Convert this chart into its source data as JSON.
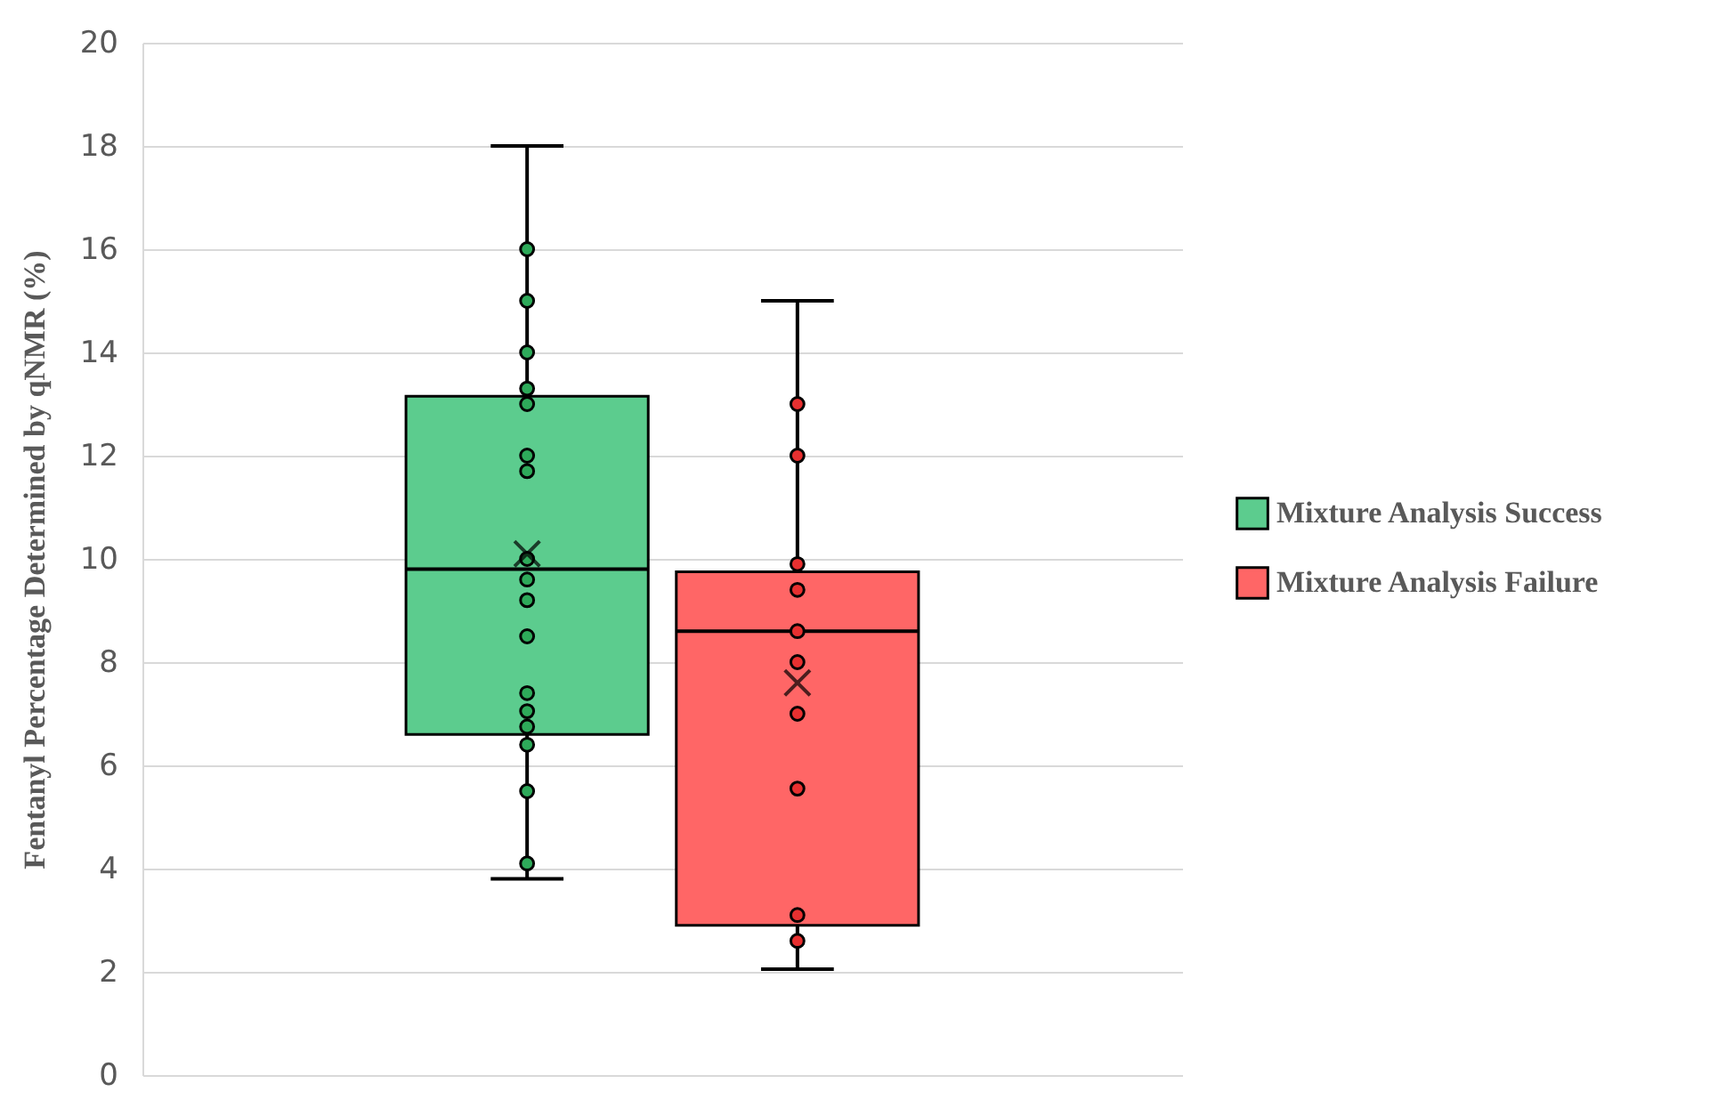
{
  "chart_data": {
    "type": "box",
    "ylabel": "Fentanyl Percentage  Determined by qNMR (%)",
    "categories": [
      null
    ],
    "ylim": [
      0,
      20
    ],
    "yticks": [
      0,
      2,
      4,
      6,
      8,
      10,
      12,
      14,
      16,
      18,
      20
    ],
    "grid": "y",
    "legend": "right",
    "tick_labels": "y",
    "series": [
      {
        "name": "Mixture Analysis Success",
        "color": "#5ccc8e",
        "boxes": [
          {
            "low": 3.8,
            "q1": 6.6,
            "median": 9.8,
            "q3": 13.15,
            "high": 18,
            "mean": 10.1
          }
        ]
      },
      {
        "name": "Mixture Analysis Failure",
        "color": "#ff6666",
        "boxes": [
          {
            "low": 2.05,
            "q1": 2.9,
            "median": 8.6,
            "q3": 9.75,
            "high": 15,
            "mean": 7.6
          }
        ]
      },
      {
        "type": "scatter",
        "color": "#2eaa5a",
        "marker": "circle",
        "x": [
          null,
          null,
          null,
          null,
          null,
          null,
          null,
          null,
          null,
          null,
          null,
          null,
          null,
          null,
          null,
          null,
          null
        ],
        "values": [
          16,
          15,
          14,
          13.3,
          13,
          12,
          11.7,
          10,
          9.6,
          9.2,
          8.5,
          7.4,
          7.05,
          6.75,
          6.4,
          5.5,
          4.1
        ]
      },
      {
        "type": "scatter",
        "color": "#e83030",
        "marker": "circle",
        "x": [
          null,
          null,
          null,
          null,
          null,
          null,
          null,
          null,
          null,
          null
        ],
        "values": [
          13,
          12,
          9.9,
          9.4,
          8.6,
          8,
          7,
          5.55,
          3.1,
          2.6
        ]
      }
    ]
  }
}
